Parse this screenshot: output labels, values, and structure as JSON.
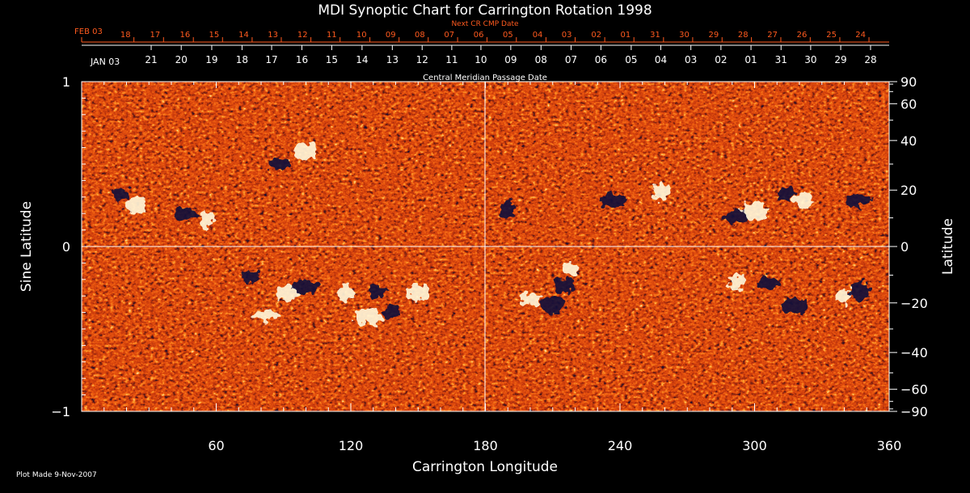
{
  "chart_data": {
    "type": "heatmap",
    "title": "MDI Synoptic Chart for Carrington Rotation 1998",
    "xlabel": "Carrington Longitude",
    "ylabel": "Sine Latitude",
    "ylabel_right": "Latitude",
    "top_axis_title": "Next CR CMP Date",
    "mid_axis_title": "Central Meridian Passage Date",
    "xlim": [
      0,
      360
    ],
    "ylim": [
      -1,
      1
    ],
    "x_ticks": [
      60,
      120,
      180,
      240,
      300,
      360
    ],
    "y_ticks_left": [
      {
        "value": 1,
        "label": "1"
      },
      {
        "value": 0,
        "label": "0"
      },
      {
        "value": -1,
        "label": "−1"
      }
    ],
    "latitude_ticks": [
      {
        "lat": 90,
        "label": "90"
      },
      {
        "lat": 60,
        "label": "60"
      },
      {
        "lat": 40,
        "label": "40"
      },
      {
        "lat": 20,
        "label": "20"
      },
      {
        "lat": 0,
        "label": "0"
      },
      {
        "lat": -20,
        "label": "−20"
      },
      {
        "lat": -40,
        "label": "−40"
      },
      {
        "lat": -60,
        "label": "−60"
      },
      {
        "lat": -90,
        "label": "−90"
      }
    ],
    "next_cr_dates": {
      "first_label": "FEB 03",
      "labels": [
        {
          "label": "18",
          "lon": 23.3
        },
        {
          "label": "17",
          "lon": 36.5
        },
        {
          "label": "16",
          "lon": 49.8
        },
        {
          "label": "15",
          "lon": 62.8
        },
        {
          "label": "14",
          "lon": 76.0
        },
        {
          "label": "13",
          "lon": 89.0
        },
        {
          "label": "12",
          "lon": 102.2
        },
        {
          "label": "11",
          "lon": 115.2
        },
        {
          "label": "10",
          "lon": 128.5
        },
        {
          "label": "09",
          "lon": 141.5
        },
        {
          "label": "08",
          "lon": 154.5
        },
        {
          "label": "07",
          "lon": 167.6
        },
        {
          "label": "06",
          "lon": 180.7
        },
        {
          "label": "05",
          "lon": 193.8
        },
        {
          "label": "04",
          "lon": 207.0
        },
        {
          "label": "03",
          "lon": 220.0
        },
        {
          "label": "02",
          "lon": 233.2
        },
        {
          "label": "01",
          "lon": 246.2
        },
        {
          "label": "31",
          "lon": 259.4
        },
        {
          "label": "30",
          "lon": 272.4
        },
        {
          "label": "29",
          "lon": 285.5
        },
        {
          "label": "28",
          "lon": 298.6
        },
        {
          "label": "27",
          "lon": 311.7
        },
        {
          "label": "26",
          "lon": 324.8
        },
        {
          "label": "25",
          "lon": 338.0
        },
        {
          "label": "24",
          "lon": 351.0
        }
      ]
    },
    "cmp_dates": {
      "first_label": "JAN 03",
      "labels": [
        {
          "label": "21",
          "lon": 31.0
        },
        {
          "label": "20",
          "lon": 44.4
        },
        {
          "label": "19",
          "lon": 58.0
        },
        {
          "label": "18",
          "lon": 71.5
        },
        {
          "label": "17",
          "lon": 84.7
        },
        {
          "label": "16",
          "lon": 98.2
        },
        {
          "label": "15",
          "lon": 111.5
        },
        {
          "label": "14",
          "lon": 125.0
        },
        {
          "label": "13",
          "lon": 138.5
        },
        {
          "label": "12",
          "lon": 151.8
        },
        {
          "label": "11",
          "lon": 165.0
        },
        {
          "label": "10",
          "lon": 178.0
        },
        {
          "label": "09",
          "lon": 191.3
        },
        {
          "label": "08",
          "lon": 204.8
        },
        {
          "label": "07",
          "lon": 218.2
        },
        {
          "label": "06",
          "lon": 231.5
        },
        {
          "label": "05",
          "lon": 245.0
        },
        {
          "label": "04",
          "lon": 258.2
        },
        {
          "label": "03",
          "lon": 271.6
        },
        {
          "label": "02",
          "lon": 285.0
        },
        {
          "label": "01",
          "lon": 298.4
        },
        {
          "label": "31",
          "lon": 311.8
        },
        {
          "label": "30",
          "lon": 325.0
        },
        {
          "label": "29",
          "lon": 338.4
        },
        {
          "label": "28",
          "lon": 351.7
        }
      ]
    },
    "grid": "crosshair at longitude 180 and sine latitude 0",
    "colormap": {
      "dark": "#0a0a3c",
      "neutral": "#e8541a",
      "light": "#fff8dc"
    },
    "polarity_regions": [
      {
        "lon": 18,
        "sinlat": 0.32,
        "polarity": "negative"
      },
      {
        "lon": 24,
        "sinlat": 0.25,
        "polarity": "positive"
      },
      {
        "lon": 47,
        "sinlat": 0.2,
        "polarity": "negative"
      },
      {
        "lon": 56,
        "sinlat": 0.16,
        "polarity": "positive"
      },
      {
        "lon": 88,
        "sinlat": 0.5,
        "polarity": "negative"
      },
      {
        "lon": 99,
        "sinlat": 0.58,
        "polarity": "positive"
      },
      {
        "lon": 75,
        "sinlat": -0.18,
        "polarity": "negative"
      },
      {
        "lon": 92,
        "sinlat": -0.28,
        "polarity": "positive"
      },
      {
        "lon": 100,
        "sinlat": -0.24,
        "polarity": "negative"
      },
      {
        "lon": 118,
        "sinlat": -0.28,
        "polarity": "positive"
      },
      {
        "lon": 132,
        "sinlat": -0.27,
        "polarity": "negative"
      },
      {
        "lon": 128,
        "sinlat": -0.42,
        "polarity": "positive"
      },
      {
        "lon": 138,
        "sinlat": -0.4,
        "polarity": "negative"
      },
      {
        "lon": 150,
        "sinlat": -0.28,
        "polarity": "positive"
      },
      {
        "lon": 82,
        "sinlat": -0.42,
        "polarity": "positive"
      },
      {
        "lon": 190,
        "sinlat": 0.22,
        "polarity": "negative"
      },
      {
        "lon": 200,
        "sinlat": -0.32,
        "polarity": "positive"
      },
      {
        "lon": 210,
        "sinlat": -0.36,
        "polarity": "negative"
      },
      {
        "lon": 218,
        "sinlat": -0.14,
        "polarity": "positive"
      },
      {
        "lon": 215,
        "sinlat": -0.24,
        "polarity": "negative"
      },
      {
        "lon": 237,
        "sinlat": 0.28,
        "polarity": "negative"
      },
      {
        "lon": 258,
        "sinlat": 0.33,
        "polarity": "positive"
      },
      {
        "lon": 292,
        "sinlat": 0.18,
        "polarity": "negative"
      },
      {
        "lon": 300,
        "sinlat": 0.22,
        "polarity": "positive"
      },
      {
        "lon": 314,
        "sinlat": 0.32,
        "polarity": "negative"
      },
      {
        "lon": 322,
        "sinlat": 0.28,
        "polarity": "positive"
      },
      {
        "lon": 346,
        "sinlat": 0.28,
        "polarity": "negative"
      },
      {
        "lon": 292,
        "sinlat": -0.22,
        "polarity": "positive"
      },
      {
        "lon": 306,
        "sinlat": -0.22,
        "polarity": "negative"
      },
      {
        "lon": 318,
        "sinlat": -0.36,
        "polarity": "negative"
      },
      {
        "lon": 340,
        "sinlat": -0.3,
        "polarity": "positive"
      },
      {
        "lon": 347,
        "sinlat": -0.27,
        "polarity": "negative"
      }
    ]
  },
  "footer": {
    "plot_made": "Plot Made  9-Nov-2007"
  }
}
